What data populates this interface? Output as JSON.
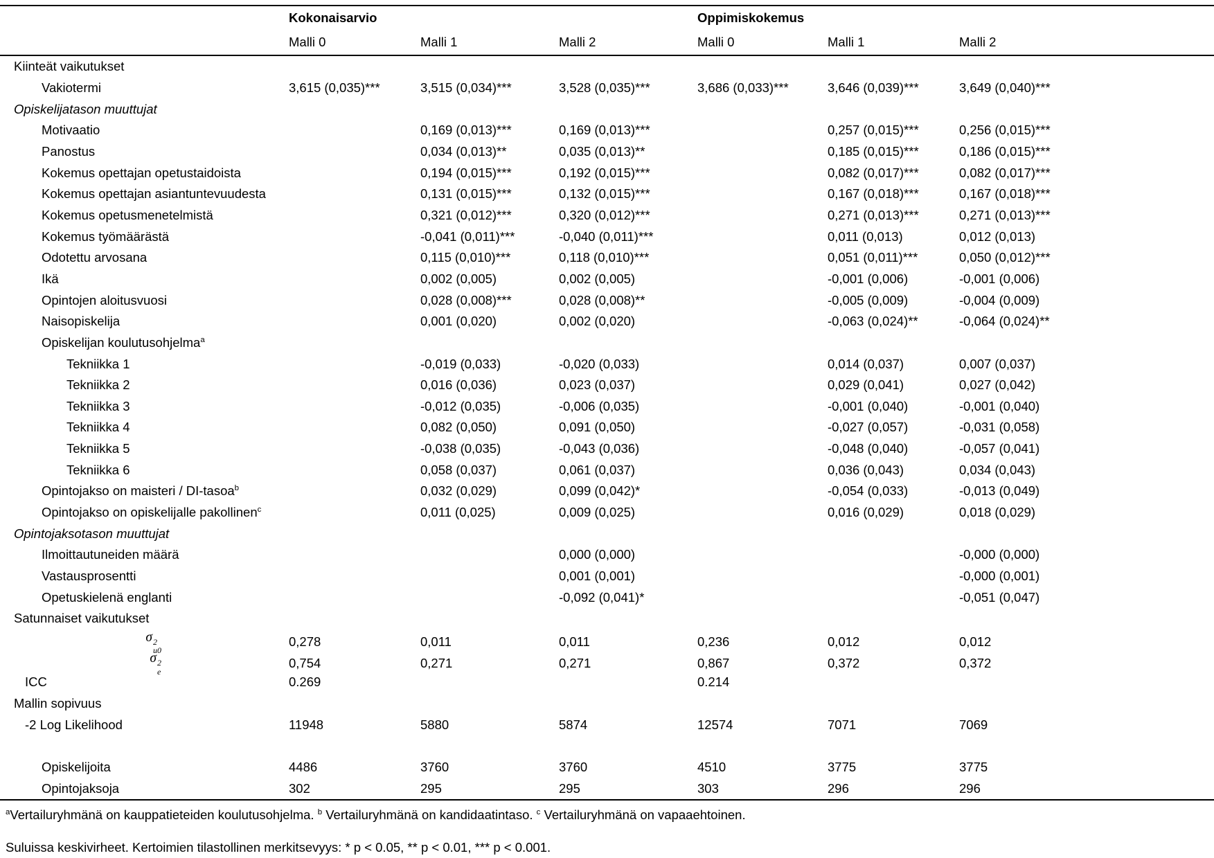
{
  "table": {
    "groups": [
      {
        "label": "Kokonaisarvio"
      },
      {
        "label": "Oppimiskokemus"
      }
    ],
    "model_headers": [
      "Malli 0",
      "Malli 1",
      "Malli 2",
      "Malli 0",
      "Malli 1",
      "Malli 2"
    ],
    "rows": [
      {
        "label": "Kiinteät vaikutukset",
        "indent": "section",
        "values": [
          "",
          "",
          "",
          "",
          "",
          ""
        ]
      },
      {
        "label": "Vakiotermi",
        "indent": "item",
        "values": [
          "3,615 (0,035)***",
          "3,515 (0,034)***",
          "3,528 (0,035)***",
          "3,686 (0,033)***",
          "3,646 (0,039)***",
          "3,649 (0,040)***"
        ]
      },
      {
        "label": "Opiskelijatason muuttujat",
        "indent": "section",
        "italic": true,
        "values": [
          "",
          "",
          "",
          "",
          "",
          ""
        ]
      },
      {
        "label": "Motivaatio",
        "indent": "item",
        "values": [
          "",
          "0,169 (0,013)***",
          "0,169 (0,013)***",
          "",
          "0,257 (0,015)***",
          "0,256 (0,015)***"
        ]
      },
      {
        "label": "Panostus",
        "indent": "item",
        "values": [
          "",
          "0,034 (0,013)**",
          "0,035 (0,013)**",
          "",
          "0,185 (0,015)***",
          "0,186 (0,015)***"
        ]
      },
      {
        "label": "Kokemus opettajan opetustaidoista",
        "indent": "item",
        "values": [
          "",
          "0,194 (0,015)***",
          "0,192 (0,015)***",
          "",
          "0,082 (0,017)***",
          "0,082 (0,017)***"
        ]
      },
      {
        "label": "Kokemus opettajan asiantuntevuudesta",
        "indent": "item",
        "values": [
          "",
          "0,131 (0,015)***",
          "0,132 (0,015)***",
          "",
          "0,167 (0,018)***",
          "0,167 (0,018)***"
        ]
      },
      {
        "label": "Kokemus opetusmenetelmistä",
        "indent": "item",
        "values": [
          "",
          "0,321 (0,012)***",
          "0,320 (0,012)***",
          "",
          "0,271 (0,013)***",
          "0,271 (0,013)***"
        ]
      },
      {
        "label": "Kokemus työmäärästä",
        "indent": "item",
        "values": [
          "",
          "-0,041 (0,011)***",
          "-0,040 (0,011)***",
          "",
          "0,011 (0,013)",
          "0,012 (0,013)"
        ]
      },
      {
        "label": "Odotettu arvosana",
        "indent": "item",
        "values": [
          "",
          "0,115 (0,010)***",
          "0,118 (0,010)***",
          "",
          "0,051 (0,011)***",
          "0,050 (0,012)***"
        ]
      },
      {
        "label": "Ikä",
        "indent": "item",
        "values": [
          "",
          "0,002 (0,005)",
          "0,002 (0,005)",
          "",
          "-0,001 (0,006)",
          "-0,001 (0,006)"
        ]
      },
      {
        "label": "Opintojen aloitusvuosi",
        "indent": "item",
        "values": [
          "",
          "0,028 (0,008)***",
          "0,028 (0,008)**",
          "",
          "-0,005 (0,009)",
          "-0,004 (0,009)"
        ]
      },
      {
        "label": "Naisopiskelija",
        "indent": "item",
        "values": [
          "",
          "0,001 (0,020)",
          "0,002 (0,020)",
          "",
          "-0,063 (0,024)**",
          "-0,064 (0,024)**"
        ]
      },
      {
        "label": "Opiskelijan koulutusohjelma",
        "sup": "a",
        "indent": "item",
        "values": [
          "",
          "",
          "",
          "",
          "",
          ""
        ]
      },
      {
        "label": "Tekniikka 1",
        "indent": "sub",
        "values": [
          "",
          "-0,019 (0,033)",
          "-0,020 (0,033)",
          "",
          "0,014 (0,037)",
          "0,007 (0,037)"
        ]
      },
      {
        "label": "Tekniikka 2",
        "indent": "sub",
        "values": [
          "",
          "0,016 (0,036)",
          "0,023 (0,037)",
          "",
          "0,029 (0,041)",
          "0,027 (0,042)"
        ]
      },
      {
        "label": "Tekniikka 3",
        "indent": "sub",
        "values": [
          "",
          "-0,012 (0,035)",
          "-0,006 (0,035)",
          "",
          "-0,001 (0,040)",
          "-0,001 (0,040)"
        ]
      },
      {
        "label": "Tekniikka 4",
        "indent": "sub",
        "values": [
          "",
          "0,082 (0,050)",
          "0,091 (0,050)",
          "",
          "-0,027 (0,057)",
          "-0,031 (0,058)"
        ]
      },
      {
        "label": "Tekniikka 5",
        "indent": "sub",
        "values": [
          "",
          "-0,038 (0,035)",
          "-0,043 (0,036)",
          "",
          "-0,048 (0,040)",
          "-0,057 (0,041)"
        ]
      },
      {
        "label": "Tekniikka 6",
        "indent": "sub",
        "values": [
          "",
          "0,058 (0,037)",
          "0,061 (0,037)",
          "",
          "0,036 (0,043)",
          "0,034 (0,043)"
        ]
      },
      {
        "label": "Opintojakso on maisteri / DI-tasoa",
        "sup": "b",
        "indent": "item",
        "values": [
          "",
          "0,032 (0,029)",
          "0,099 (0,042)*",
          "",
          "-0,054 (0,033)",
          "-0,013 (0,049)"
        ]
      },
      {
        "label": "Opintojakso on opiskelijalle pakollinen",
        "sup": "c",
        "indent": "item",
        "values": [
          "",
          "0,011 (0,025)",
          "0,009 (0,025)",
          "",
          "0,016 (0,029)",
          "0,018 (0,029)"
        ]
      },
      {
        "label": "Opintojaksotason muuttujat",
        "indent": "section",
        "italic": true,
        "values": [
          "",
          "",
          "",
          "",
          "",
          ""
        ]
      },
      {
        "label": "Ilmoittautuneiden määrä",
        "indent": "item",
        "values": [
          "",
          "",
          "0,000 (0,000)",
          "",
          "",
          "-0,000 (0,000)"
        ]
      },
      {
        "label": "Vastausprosentti",
        "indent": "item",
        "values": [
          "",
          "",
          "0,001 (0,001)",
          "",
          "",
          "-0,000 (0,001)"
        ]
      },
      {
        "label": "Opetuskielenä englanti",
        "indent": "item",
        "values": [
          "",
          "",
          "-0,092 (0,041)*",
          "",
          "",
          "-0,051 (0,047)"
        ]
      },
      {
        "label": "Satunnaiset vaikutukset",
        "indent": "section",
        "values": [
          "",
          "",
          "",
          "",
          "",
          ""
        ]
      },
      {
        "label": "sigma-u0-squared",
        "indent": "sigma",
        "sigma": {
          "base": "σ",
          "sup": "2",
          "sub": "u0"
        },
        "values": [
          "0,278",
          "0,011",
          "0,011",
          "0,236",
          "0,012",
          "0,012"
        ]
      },
      {
        "label": "sigma-e-squared",
        "indent": "sigma",
        "sigma": {
          "base": "σ",
          "sup": "2",
          "sub": "e"
        },
        "values": [
          "0,754",
          "0,271",
          "0,271",
          "0,867",
          "0,372",
          "0,372"
        ]
      },
      {
        "label": "ICC",
        "indent": "stat",
        "values": [
          "0.269",
          "",
          "",
          "0.214",
          "",
          ""
        ]
      },
      {
        "label": "Mallin sopivuus",
        "indent": "section",
        "values": [
          "",
          "",
          "",
          "",
          "",
          ""
        ]
      },
      {
        "label": "-2 Log Likelihood",
        "indent": "stat",
        "values": [
          "11948",
          "5880",
          "5874",
          "12574",
          "7071",
          "7069"
        ]
      },
      {
        "label": "",
        "indent": "item",
        "values": [
          "",
          "",
          "",
          "",
          "",
          ""
        ]
      },
      {
        "label": "Opiskelijoita",
        "indent": "item",
        "values": [
          "4486",
          "3760",
          "3760",
          "4510",
          "3775",
          "3775"
        ]
      },
      {
        "label": "Opintojaksoja",
        "indent": "item",
        "values": [
          "302",
          "295",
          "295",
          "303",
          "296",
          "296"
        ]
      }
    ]
  },
  "footnotes": {
    "comparison": [
      {
        "sup": "a",
        "text": "Vertailuryhmänä on kauppatieteiden koulutusohjelma."
      },
      {
        "sup": "b",
        "text": "Vertailuryhmänä on kandidaatintaso."
      },
      {
        "sup": "c",
        "text": "Vertailuryhmänä on vapaaehtoinen."
      }
    ],
    "significance": "Suluissa keskivirheet. Kertoimien tilastollinen merkitsevyys: * p < 0.05, ** p < 0.01, *** p < 0.001."
  },
  "colors": {
    "text": "#000000",
    "background": "#ffffff",
    "rule": "#000000"
  }
}
